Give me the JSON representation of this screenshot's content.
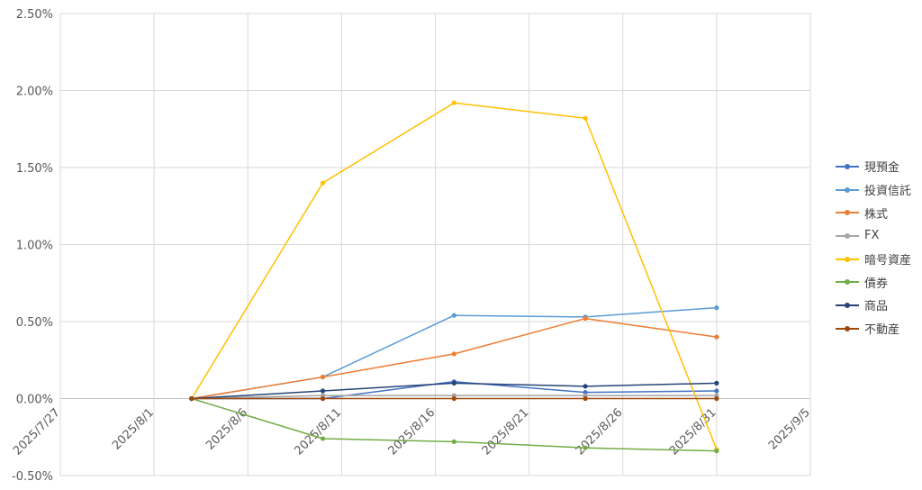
{
  "chart_data": {
    "type": "line",
    "x": [
      "2025/8/3",
      "2025/8/10",
      "2025/8/17",
      "2025/8/24",
      "2025/8/31"
    ],
    "x_ticks": [
      "2025/7/27",
      "2025/8/1",
      "2025/8/6",
      "2025/8/11",
      "2025/8/16",
      "2025/8/21",
      "2025/8/26",
      "2025/8/31",
      "2025/9/5"
    ],
    "xlim": [
      "2025/7/27",
      "2025/9/5"
    ],
    "y_ticks": [
      "-0.50%",
      "0.00%",
      "0.50%",
      "1.00%",
      "1.50%",
      "2.00%",
      "2.50%"
    ],
    "ylim": [
      -0.5,
      2.5
    ],
    "y_unit": "%",
    "grid": true,
    "legend_position": "right",
    "series": [
      {
        "name": "現預金",
        "color": "#4472C4",
        "values": [
          0,
          0,
          0.11,
          0.04,
          0.05
        ]
      },
      {
        "name": "投資信託",
        "color": "#5B9BD5",
        "values": [
          0,
          0.14,
          0.54,
          0.53,
          0.59
        ]
      },
      {
        "name": "株式",
        "color": "#ED7D31",
        "values": [
          0,
          0.14,
          0.29,
          0.52,
          0.4
        ]
      },
      {
        "name": "FX",
        "color": "#A5A5A5",
        "values": [
          0,
          0.02,
          0.02,
          0.02,
          0.02
        ]
      },
      {
        "name": "暗号資産",
        "color": "#FFC000",
        "values": [
          0,
          1.4,
          1.92,
          1.82,
          -0.33
        ]
      },
      {
        "name": "債券",
        "color": "#70AD47",
        "values": [
          0,
          -0.26,
          -0.28,
          -0.32,
          -0.34
        ]
      },
      {
        "name": "商品",
        "color": "#264478",
        "values": [
          0,
          0.05,
          0.1,
          0.08,
          0.1
        ]
      },
      {
        "name": "不動産",
        "color": "#9E480E",
        "values": [
          0,
          0,
          0,
          0,
          0
        ]
      }
    ]
  }
}
